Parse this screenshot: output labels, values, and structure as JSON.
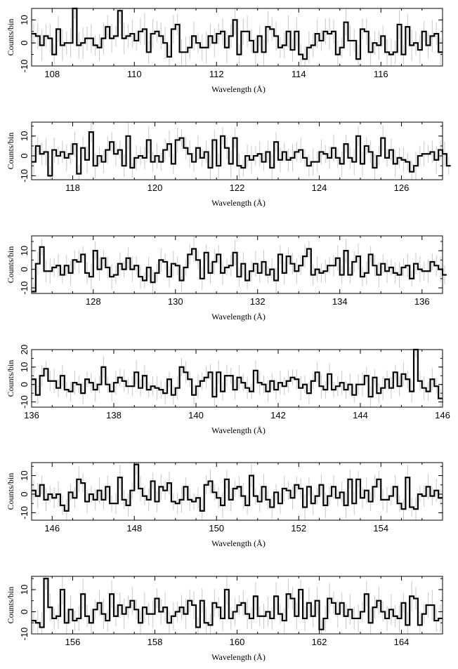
{
  "chart_data": [
    {
      "type": "line",
      "style": "step histogram with light grey error bars",
      "xlabel": "Wavelength (Å)",
      "ylabel": "Counts/bin",
      "xlim": [
        107.5,
        117.5
      ],
      "ylim": [
        -10,
        15
      ],
      "xticks": [
        108,
        110,
        112,
        114,
        116
      ],
      "yticks": [
        -10,
        0,
        10
      ],
      "series": [
        {
          "bin_width": 0.1,
          "values": [
            4,
            3,
            -1,
            3,
            2,
            -5,
            6,
            -1,
            0,
            0,
            15,
            -1,
            0,
            2,
            2,
            -1,
            -2,
            2,
            7,
            2,
            3,
            14,
            2,
            3,
            4,
            1,
            5,
            6,
            -4,
            4,
            5,
            3,
            0,
            -6,
            6,
            8,
            -4,
            -4,
            -2,
            3,
            0,
            -2,
            -2,
            3,
            0,
            4,
            5,
            -2,
            3,
            10,
            -5,
            5,
            5,
            1,
            -4,
            3,
            -4,
            7,
            6,
            3,
            -2,
            -1,
            5,
            -3,
            5,
            -5,
            -7,
            -2,
            -1,
            4,
            1,
            5,
            4,
            5,
            -5,
            -2,
            9,
            1,
            1,
            -7,
            6,
            5,
            -4,
            0,
            -1,
            3,
            -4,
            -5,
            -4,
            8,
            -5,
            7,
            -1,
            0,
            -3,
            5,
            -1,
            3,
            4,
            -4
          ]
        }
      ]
    },
    {
      "type": "line",
      "style": "step histogram with light grey error bars",
      "xlabel": "Wavelength (Å)",
      "ylabel": "Counts/bin",
      "xlim": [
        117.0,
        127.0
      ],
      "ylim": [
        -12,
        17
      ],
      "xticks": [
        118,
        120,
        122,
        124,
        126
      ],
      "yticks": [
        -10,
        0,
        10
      ],
      "series": [
        {
          "bin_width": 0.1,
          "values": [
            -3,
            5,
            1,
            2,
            -10,
            3,
            0,
            2,
            -1,
            1,
            6,
            -9,
            4,
            -2,
            12,
            -5,
            0,
            -3,
            3,
            7,
            1,
            3,
            -5,
            10,
            -6,
            -1,
            0,
            -1,
            8,
            -3,
            0,
            -3,
            3,
            6,
            -4,
            8,
            9,
            4,
            1,
            -3,
            4,
            -1,
            2,
            -6,
            8,
            -5,
            10,
            4,
            -4,
            9,
            -5,
            -6,
            0,
            -2,
            0,
            1,
            -3,
            2,
            -6,
            7,
            -2,
            2,
            -2,
            -1,
            2,
            3,
            -1,
            -5,
            -3,
            -3,
            2,
            1,
            -1,
            4,
            -1,
            -4,
            6,
            -1,
            -3,
            10,
            -4,
            5,
            2,
            -6,
            0,
            9,
            -1,
            3,
            -4,
            -1,
            -2,
            -3,
            -8,
            -5,
            0,
            1,
            1,
            2,
            -2,
            3,
            1,
            -5
          ]
        }
      ]
    },
    {
      "type": "line",
      "style": "step histogram with light grey error bars",
      "xlabel": "Wavelength (Å)",
      "ylabel": "Counts/bin",
      "xlim": [
        126.5,
        136.5
      ],
      "ylim": [
        -13,
        18
      ],
      "xticks": [
        128,
        130,
        132,
        134,
        136
      ],
      "yticks": [
        -10,
        0,
        10
      ],
      "series": [
        {
          "bin_width": 0.1,
          "values": [
            -12,
            3,
            12,
            -1,
            -1,
            1,
            2,
            -3,
            2,
            -2,
            5,
            4,
            8,
            -2,
            -4,
            10,
            0,
            6,
            1,
            -4,
            -3,
            3,
            0,
            6,
            0,
            2,
            -4,
            -6,
            1,
            -7,
            -2,
            5,
            4,
            -4,
            3,
            2,
            -6,
            1,
            8,
            11,
            5,
            -5,
            9,
            -2,
            4,
            8,
            -2,
            1,
            2,
            9,
            -4,
            3,
            -6,
            -1,
            3,
            -2,
            4,
            -3,
            0,
            -6,
            8,
            -2,
            7,
            3,
            -1,
            2,
            7,
            11,
            -3,
            0,
            -2,
            -1,
            2,
            2,
            6,
            -3,
            10,
            -3,
            4,
            7,
            -4,
            -2,
            8,
            2,
            -3,
            3,
            -1,
            1,
            -2,
            -3,
            1,
            2,
            -5,
            3,
            0,
            -1,
            -1,
            4,
            2,
            0,
            -3
          ]
        }
      ]
    },
    {
      "type": "line",
      "style": "step histogram with light grey error bars",
      "xlabel": "Wavelength (Å)",
      "ylabel": "Counts/bin",
      "xlim": [
        136,
        146
      ],
      "ylim": [
        -13,
        20
      ],
      "xticks": [
        136,
        138,
        140,
        142,
        144,
        146
      ],
      "yticks": [
        -10,
        0,
        10,
        20
      ],
      "series": [
        {
          "bin_width": 0.1,
          "values": [
            3,
            -6,
            5,
            9,
            2,
            2,
            -2,
            5,
            -3,
            -4,
            1,
            0,
            -5,
            3,
            1,
            -3,
            0,
            10,
            0,
            -4,
            1,
            4,
            2,
            -1,
            -1,
            7,
            -2,
            5,
            -3,
            -1,
            -2,
            -3,
            -5,
            3,
            -6,
            -2,
            10,
            7,
            3,
            -6,
            -1,
            2,
            4,
            7,
            -7,
            7,
            -4,
            5,
            5,
            -3,
            4,
            1,
            -2,
            -4,
            8,
            1,
            0,
            -4,
            2,
            -3,
            1,
            -1,
            2,
            4,
            3,
            -2,
            0,
            -5,
            2,
            7,
            -1,
            -3,
            6,
            -3,
            -1,
            1,
            -3,
            0,
            -6,
            0,
            0,
            5,
            -7,
            4,
            -5,
            -2,
            3,
            -2,
            7,
            -1,
            6,
            3,
            -4,
            20,
            2,
            -2,
            -4,
            3,
            -1,
            -8
          ]
        }
      ]
    },
    {
      "type": "line",
      "style": "step histogram with light grey error bars",
      "xlabel": "Wavelength (Å)",
      "ylabel": "Counts/bin",
      "xlim": [
        145.5,
        155.5
      ],
      "ylim": [
        -14,
        17
      ],
      "xticks": [
        146,
        148,
        150,
        152,
        154
      ],
      "yticks": [
        -10,
        0,
        10
      ],
      "series": [
        {
          "bin_width": 0.1,
          "values": [
            2,
            -1,
            5,
            -3,
            0,
            -2,
            0,
            -6,
            -9,
            1,
            -2,
            8,
            6,
            -4,
            0,
            -3,
            2,
            -3,
            4,
            -5,
            -5,
            9,
            -3,
            -6,
            2,
            16,
            3,
            -1,
            -3,
            7,
            -4,
            4,
            2,
            6,
            -4,
            -5,
            -3,
            4,
            -3,
            -4,
            -2,
            -9,
            5,
            7,
            1,
            -2,
            -6,
            8,
            -3,
            3,
            4,
            -1,
            -6,
            10,
            -1,
            -4,
            4,
            -3,
            -7,
            1,
            -5,
            3,
            2,
            -2,
            5,
            3,
            -7,
            4,
            -5,
            -1,
            5,
            -6,
            -1,
            4,
            -2,
            1,
            -6,
            8,
            -5,
            8,
            -2,
            2,
            -4,
            4,
            8,
            -3,
            -3,
            -1,
            4,
            -5,
            -8,
            9,
            -7,
            -8,
            0,
            -1,
            4,
            -1,
            2,
            -2
          ]
        }
      ]
    },
    {
      "type": "line",
      "style": "step histogram with light grey error bars",
      "xlabel": "Wavelength (Å)",
      "ylabel": "Counts/bin",
      "xlim": [
        155,
        165
      ],
      "ylim": [
        -10,
        16
      ],
      "xticks": [
        156,
        158,
        160,
        162,
        164
      ],
      "yticks": [
        -10,
        0,
        10
      ],
      "series": [
        {
          "bin_width": 0.1,
          "values": [
            -4,
            -5,
            -7,
            15,
            2,
            -3,
            -2,
            10,
            -5,
            1,
            -4,
            -3,
            8,
            -2,
            -5,
            1,
            4,
            -1,
            -4,
            8,
            -2,
            3,
            -1,
            2,
            5,
            1,
            -5,
            2,
            -1,
            -1,
            6,
            0,
            2,
            -5,
            -2,
            0,
            2,
            -1,
            5,
            3,
            -7,
            5,
            -5,
            -6,
            4,
            2,
            -3,
            10,
            -3,
            0,
            3,
            4,
            -1,
            -3,
            7,
            -2,
            -2,
            0,
            -3,
            7,
            -1,
            -4,
            8,
            6,
            -2,
            10,
            -3,
            4,
            -2,
            5,
            -8,
            -3,
            6,
            4,
            -1,
            4,
            -2,
            1,
            -3,
            -3,
            0,
            8,
            -5,
            2,
            5,
            0,
            -3,
            1,
            -2,
            -3,
            4,
            -6,
            7,
            6,
            -6,
            -1,
            3,
            3,
            -4,
            -3
          ]
        }
      ]
    }
  ]
}
